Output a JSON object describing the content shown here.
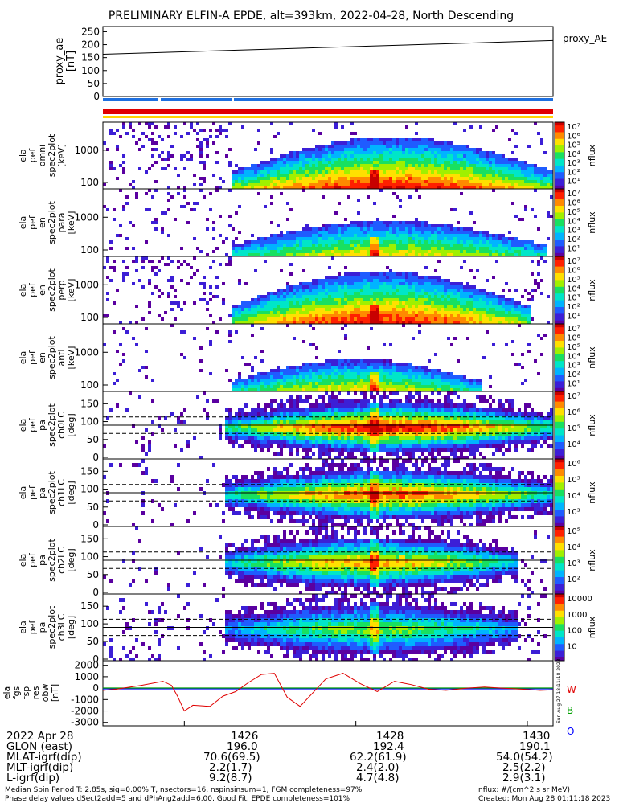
{
  "title": "PRELIMINARY ELFIN-A EPDE, alt=393km, 2022-04-28, North Descending",
  "colors": {
    "sector_bar": "#1e6fe0",
    "red_bar": "#e00000",
    "yellow_bar": "#ffd400",
    "gfield_w": "#e00000",
    "gfield_b": "#00a000",
    "gfield_o": "#0000ff"
  },
  "panels": {
    "ae": {
      "ylabel": [
        "proxy_ae",
        "[nT]"
      ],
      "ticks": [
        "250",
        "200",
        "150",
        "100",
        "50",
        "0"
      ],
      "legend": "proxy_AE"
    },
    "energy": [
      {
        "ylabel": [
          "ela",
          "pef",
          "omni",
          "spec2plot",
          "[keV]"
        ],
        "zticks": [
          "10⁷",
          "10⁶",
          "10⁵",
          "10⁴",
          "10³",
          "10²",
          "10¹"
        ],
        "ztitle": "nflux",
        "ticks": [
          "1000",
          "100"
        ]
      },
      {
        "ylabel": [
          "ela",
          "pef",
          "en",
          "spec2plot",
          "para",
          "[keV]"
        ],
        "zticks": [
          "10⁷",
          "10⁶",
          "10⁵",
          "10⁴",
          "10³",
          "10²",
          "10¹"
        ],
        "ztitle": "nflux",
        "ticks": [
          "1000",
          "100"
        ]
      },
      {
        "ylabel": [
          "ela",
          "pef",
          "en",
          "spec2plot",
          "perp",
          "[keV]"
        ],
        "zticks": [
          "10⁷",
          "10⁶",
          "10⁵",
          "10⁴",
          "10³",
          "10²",
          "10¹"
        ],
        "ztitle": "nflux",
        "ticks": [
          "1000",
          "100"
        ]
      },
      {
        "ylabel": [
          "ela",
          "pef",
          "en",
          "spec2plot",
          "anti",
          "[keV]"
        ],
        "zticks": [
          "10⁷",
          "10⁶",
          "10⁵",
          "10⁴",
          "10³",
          "10²",
          "10¹"
        ],
        "ztitle": "nflux",
        "ticks": [
          "1000",
          "100"
        ]
      }
    ],
    "pitch": [
      {
        "ylabel": [
          "ela",
          "pef",
          "pa",
          "spec2plot",
          "ch0LC",
          "[deg]"
        ],
        "zticks": [
          "10⁷",
          "10⁶",
          "10⁵",
          "10⁴"
        ],
        "ztitle": "nflux",
        "ticks": [
          "150",
          "100",
          "50",
          "0"
        ]
      },
      {
        "ylabel": [
          "ela",
          "pef",
          "pa",
          "spec2plot",
          "ch1LC",
          "[deg]"
        ],
        "zticks": [
          "10⁶",
          "10⁵",
          "10⁴",
          "10³"
        ],
        "ztitle": "nflux",
        "ticks": [
          "150",
          "100",
          "50",
          "0"
        ]
      },
      {
        "ylabel": [
          "ela",
          "pef",
          "pa",
          "spec2plot",
          "ch2LC",
          "[deg]"
        ],
        "zticks": [
          "10⁵",
          "10⁴",
          "10³",
          "10²"
        ],
        "ztitle": "nflux",
        "ticks": [
          "150",
          "100",
          "50",
          "0"
        ]
      },
      {
        "ylabel": [
          "ela",
          "pef",
          "pa",
          "spec2plot",
          "ch3LC",
          "[deg]"
        ],
        "zticks": [
          "10000",
          "1000",
          "100",
          "10"
        ],
        "ztitle": "nflux",
        "ticks": [
          "150",
          "100",
          "50",
          "0"
        ]
      }
    ],
    "bfield": {
      "ylabel": [
        "ela",
        "fgs",
        "fsp",
        "res",
        "obw",
        "[nT]"
      ],
      "ticks": [
        "2000",
        "1000",
        "0",
        "-1000",
        "-2000",
        "-3000"
      ],
      "legend": [
        "W",
        "B",
        "O"
      ],
      "stamp": "Sun Aug 27 18:11:18 2023"
    }
  },
  "chart_data": [
    {
      "type": "line",
      "name": "proxy_AE",
      "x": [
        1425.05,
        1430.3
      ],
      "y": [
        163,
        216
      ],
      "ylim": [
        0,
        270
      ]
    },
    {
      "type": "heatmap",
      "name": "energy spectrograms",
      "time_range": [
        "14:25:05",
        "14:30:18"
      ],
      "energy_ylim_keV": [
        70,
        7000
      ],
      "scale": "log"
    },
    {
      "type": "heatmap",
      "name": "pitch-angle spectrograms",
      "ylim_deg": [
        0,
        180
      ],
      "loss_cone_lines_deg": [
        67,
        90,
        113
      ]
    },
    {
      "type": "line",
      "name": "bfield residual",
      "ylim": [
        -3300,
        2400
      ],
      "x": [
        1425.05,
        1425.2,
        1425.5,
        1425.75,
        1425.85,
        1425.92,
        1426.0,
        1426.1,
        1426.3,
        1426.45,
        1426.6,
        1426.75,
        1426.9,
        1427.05,
        1427.2,
        1427.35,
        1427.5,
        1427.65,
        1427.85,
        1428.05,
        1428.25,
        1428.45,
        1428.65,
        1428.85,
        1429.05,
        1429.3,
        1429.5,
        1429.7,
        1429.95,
        1430.15,
        1430.3
      ],
      "y": [
        -200,
        -100,
        250,
        600,
        250,
        -700,
        -2000,
        -1500,
        -1600,
        -700,
        -300,
        500,
        1200,
        1300,
        -800,
        -1600,
        -400,
        800,
        1300,
        400,
        -300,
        600,
        300,
        -100,
        -200,
        0,
        100,
        0,
        -100,
        -200,
        -150
      ]
    }
  ],
  "footer": {
    "rows": [
      {
        "label": "2022 Apr 28",
        "v1": "1426",
        "v2": "1428",
        "v3": "1430"
      },
      {
        "label": "GLON (east)",
        "v1": "196.0",
        "v2": "192.4",
        "v3": "190.1"
      },
      {
        "label": "MLAT-igrf(dip)",
        "v1": "70.6(69.5)",
        "v2": "62.2(61.9)",
        "v3": "54.0(54.2)"
      },
      {
        "label": "MLT-igrf(dip)",
        "v1": "2.2(1.7)",
        "v2": "2.4(2.0)",
        "v3": "2.5(2.2)"
      },
      {
        "label": "L-igrf(dip)",
        "v1": "9.2(8.7)",
        "v2": "4.7(4.8)",
        "v3": "2.9(3.1)"
      }
    ],
    "note1": "Median Spin Period T: 2.85s, sig=0.00% T, nsectors=16, nspinsinsum=1, FGM completeness=97%",
    "note2": "Phase delay values dSect2add=5 and dPhAng2add=6.00, Good Fit, EPDE completeness=101%",
    "units": "nflux: #/(cm^2 s sr MeV)",
    "created": "Created: Mon Aug 28 01:11:18 2023"
  }
}
